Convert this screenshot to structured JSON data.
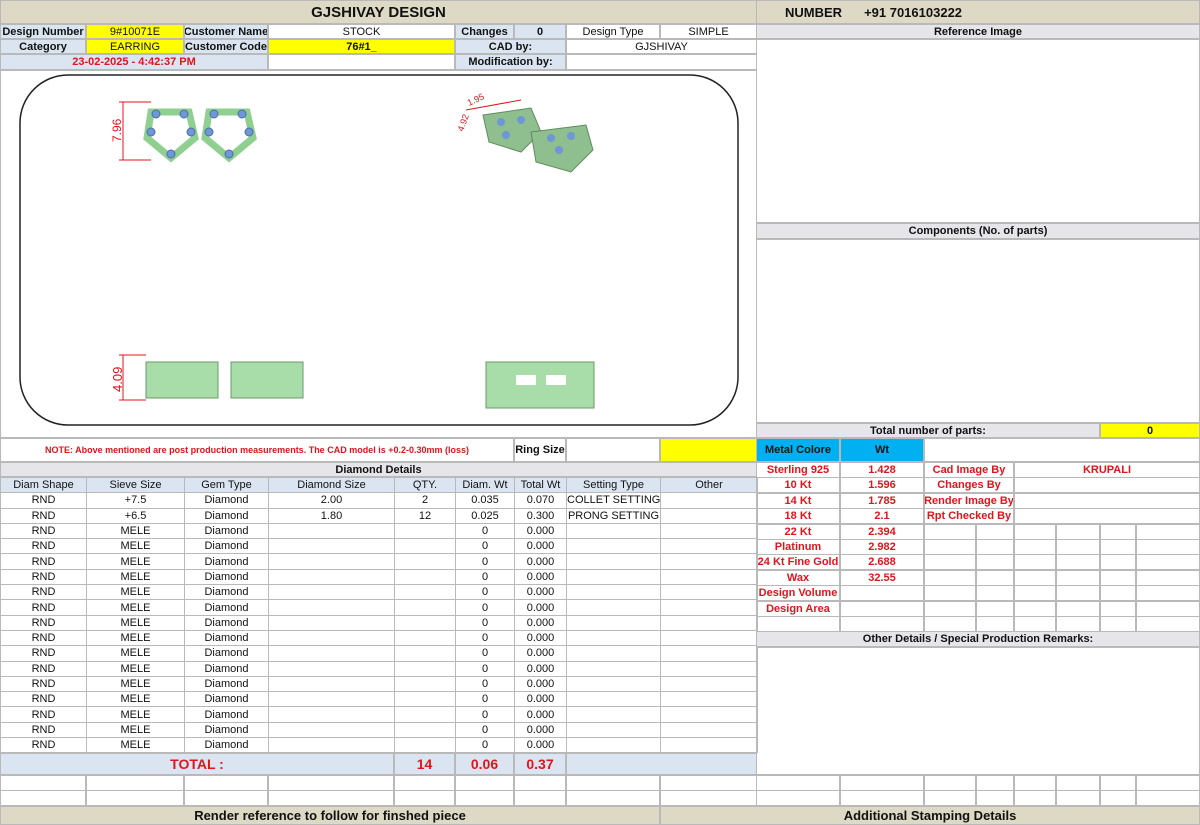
{
  "title": "GJSHIVAY DESIGN",
  "number_label": "NUMBER",
  "number_value": "+91 7016103222",
  "header": {
    "design_number_label": "Design Number",
    "design_number": "9#10071E",
    "customer_name_label": "Customer Name",
    "customer_name": "STOCK",
    "changes_label": "Changes",
    "changes": "0",
    "design_type_label": "Design Type",
    "design_type": "SIMPLE",
    "category_label": "Category",
    "category": "EARRING",
    "customer_code_label": "Customer Code",
    "customer_code": "76#1_",
    "cad_by_label": "CAD by:",
    "cad_by": "GJSHIVAY",
    "timestamp": "23-02-2025 - 4:42:37 PM",
    "modification_by_label": "Modification by:"
  },
  "cad_dims": {
    "top_height": "7.96",
    "side_height": "4.09",
    "iso_a": "4.92",
    "iso_b": "1.95"
  },
  "note": "NOTE: Above mentioned are post production measurements. The CAD model is +0.2-0.30mm (loss)",
  "ring_size_label": "Ring Size",
  "diamond_details_title": "Diamond Details",
  "diamond_columns": [
    "Diam Shape",
    "Sieve Size",
    "Gem Type",
    "Diamond Size",
    "QTY.",
    "Diam. Wt",
    "Total Wt",
    "Setting Type",
    "Other"
  ],
  "diamond_rows": [
    [
      "RND",
      "+7.5",
      "Diamond",
      "2.00",
      "2",
      "0.035",
      "0.070",
      "COLLET SETTING",
      ""
    ],
    [
      "RND",
      "+6.5",
      "Diamond",
      "1.80",
      "12",
      "0.025",
      "0.300",
      "PRONG SETTING",
      ""
    ],
    [
      "RND",
      "MELE",
      "Diamond",
      "",
      "",
      "0",
      "0.000",
      "",
      ""
    ],
    [
      "RND",
      "MELE",
      "Diamond",
      "",
      "",
      "0",
      "0.000",
      "",
      ""
    ],
    [
      "RND",
      "MELE",
      "Diamond",
      "",
      "",
      "0",
      "0.000",
      "",
      ""
    ],
    [
      "RND",
      "MELE",
      "Diamond",
      "",
      "",
      "0",
      "0.000",
      "",
      ""
    ],
    [
      "RND",
      "MELE",
      "Diamond",
      "",
      "",
      "0",
      "0.000",
      "",
      ""
    ],
    [
      "RND",
      "MELE",
      "Diamond",
      "",
      "",
      "0",
      "0.000",
      "",
      ""
    ],
    [
      "RND",
      "MELE",
      "Diamond",
      "",
      "",
      "0",
      "0.000",
      "",
      ""
    ],
    [
      "RND",
      "MELE",
      "Diamond",
      "",
      "",
      "0",
      "0.000",
      "",
      ""
    ],
    [
      "RND",
      "MELE",
      "Diamond",
      "",
      "",
      "0",
      "0.000",
      "",
      ""
    ],
    [
      "RND",
      "MELE",
      "Diamond",
      "",
      "",
      "0",
      "0.000",
      "",
      ""
    ],
    [
      "RND",
      "MELE",
      "Diamond",
      "",
      "",
      "0",
      "0.000",
      "",
      ""
    ],
    [
      "RND",
      "MELE",
      "Diamond",
      "",
      "",
      "0",
      "0.000",
      "",
      ""
    ],
    [
      "RND",
      "MELE",
      "Diamond",
      "",
      "",
      "0",
      "0.000",
      "",
      ""
    ],
    [
      "RND",
      "MELE",
      "Diamond",
      "",
      "",
      "0",
      "0.000",
      "",
      ""
    ],
    [
      "RND",
      "MELE",
      "Diamond",
      "",
      "",
      "0",
      "0.000",
      "",
      ""
    ]
  ],
  "total": {
    "label": "TOTAL :",
    "qty": "14",
    "diam_wt": "0.06",
    "total_wt": "0.37"
  },
  "footer_left": "Render reference to follow for finshed piece",
  "footer_right": "Additional Stamping Details",
  "reference_image_label": "Reference Image",
  "components_label": "Components (No. of parts)",
  "total_parts_label": "Total number of parts:",
  "total_parts": "0",
  "metal": {
    "header_name": "Metal Colore",
    "header_wt": "Wt",
    "rows": [
      [
        "Sterling 925",
        "1.428"
      ],
      [
        "10 Kt",
        "1.596"
      ],
      [
        "14 Kt",
        "1.785"
      ],
      [
        "18 Kt",
        "2.1"
      ],
      [
        "22 Kt",
        "2.394"
      ],
      [
        "Platinum",
        "2.982"
      ],
      [
        "24 Kt Fine Gold",
        "2.688"
      ],
      [
        "Wax",
        "32.55"
      ],
      [
        "Design Volume",
        ""
      ],
      [
        "Design Area",
        ""
      ]
    ]
  },
  "credits": [
    [
      "Cad Image By",
      "KRUPALI"
    ],
    [
      "Changes By",
      ""
    ],
    [
      "Render Image By",
      ""
    ],
    [
      "Rpt Checked By",
      ""
    ]
  ],
  "other_details_label": "Other Details / Special Production Remarks:",
  "colors": {
    "tan": "#ddd9c4",
    "light_blue": "#dbe5f1",
    "yellow": "#ffff00",
    "cyan": "#00b0f0",
    "red": "#e0141c"
  }
}
